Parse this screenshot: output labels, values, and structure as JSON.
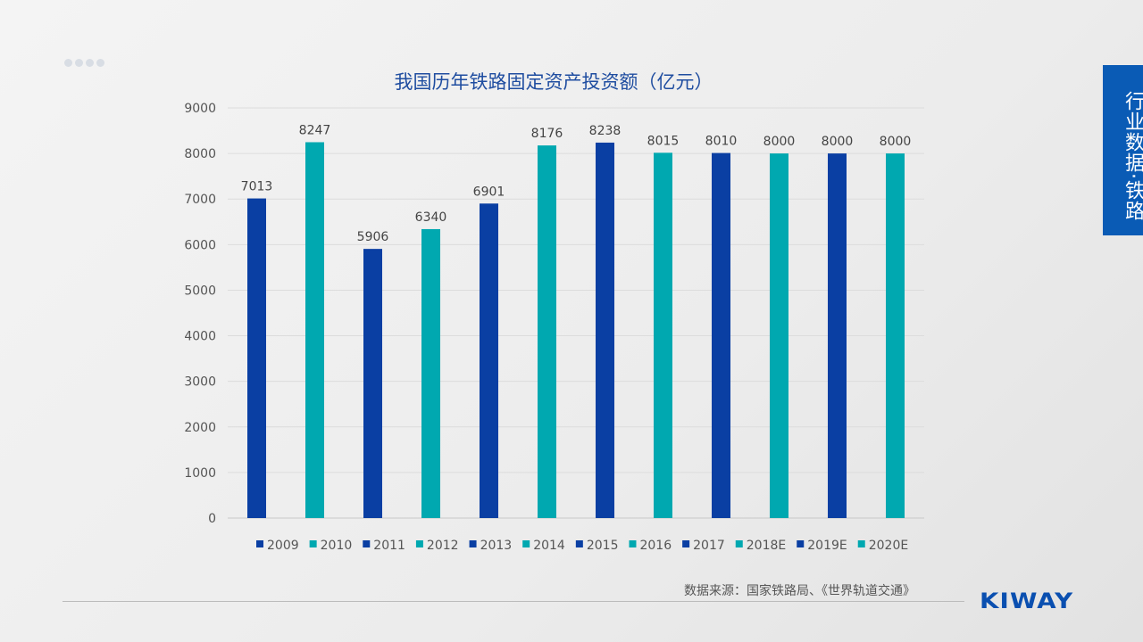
{
  "side_tab": "行业数据·铁路",
  "source": "数据来源：国家铁路局、《世界轨道交通》",
  "logo": "KIWAY",
  "colors": {
    "dark": "#0a3fa3",
    "teal": "#00a8b0"
  },
  "chart_data": {
    "type": "bar",
    "title": "我国历年铁路固定资产投资额（亿元）",
    "categories": [
      "2009",
      "2010",
      "2011",
      "2012",
      "2013",
      "2014",
      "2015",
      "2016",
      "2017",
      "2018E",
      "2019E",
      "2020E"
    ],
    "values": [
      7013,
      8247,
      5906,
      6340,
      6901,
      8176,
      8238,
      8015,
      8010,
      8000,
      8000,
      8000
    ],
    "ylim": [
      0,
      9000
    ],
    "yticks": [
      0,
      1000,
      2000,
      3000,
      4000,
      5000,
      6000,
      7000,
      8000,
      9000
    ],
    "grid": true,
    "legend": "bottom",
    "series_colors": [
      "dark",
      "teal",
      "dark",
      "teal",
      "dark",
      "teal",
      "dark",
      "teal",
      "dark",
      "teal",
      "dark",
      "teal"
    ]
  }
}
